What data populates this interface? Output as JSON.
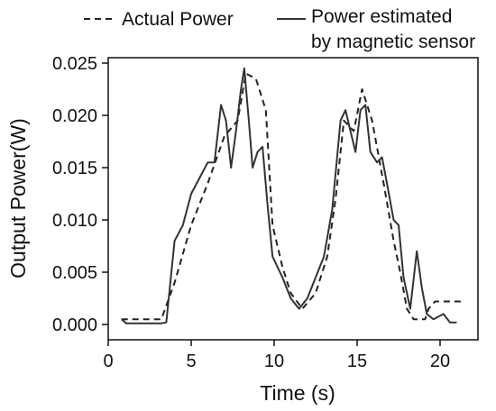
{
  "chart_data": {
    "type": "line",
    "title": "",
    "xlabel": "Time  (s)",
    "ylabel": "Output  Power(W)",
    "xlim": [
      0,
      22
    ],
    "ylim": [
      -0.001,
      0.026
    ],
    "x_ticks": [
      0,
      5,
      10,
      15,
      20
    ],
    "x_tick_labels": [
      "0",
      "5",
      "10",
      "15",
      "20"
    ],
    "y_ticks": [
      0.0,
      0.005,
      0.01,
      0.015,
      0.02,
      0.025
    ],
    "y_tick_labels": [
      "0.000",
      "0.005",
      "0.010",
      "0.015",
      "0.020",
      "0.025"
    ],
    "grid": false,
    "legend_position": "top",
    "series": [
      {
        "name": "Actual Power",
        "style": "dashed",
        "color": "#222222",
        "points": [
          [
            0.8,
            0.0005
          ],
          [
            3.2,
            0.0005
          ],
          [
            4.0,
            0.004
          ],
          [
            5.0,
            0.0095
          ],
          [
            6.0,
            0.0135
          ],
          [
            7.0,
            0.018
          ],
          [
            7.8,
            0.0195
          ],
          [
            8.3,
            0.024
          ],
          [
            8.9,
            0.0235
          ],
          [
            9.5,
            0.0205
          ],
          [
            9.9,
            0.0095
          ],
          [
            10.5,
            0.0055
          ],
          [
            11.0,
            0.003
          ],
          [
            11.7,
            0.0015
          ],
          [
            12.5,
            0.003
          ],
          [
            13.2,
            0.0065
          ],
          [
            13.7,
            0.012
          ],
          [
            14.2,
            0.0195
          ],
          [
            14.8,
            0.0185
          ],
          [
            15.3,
            0.0225
          ],
          [
            15.9,
            0.0195
          ],
          [
            16.6,
            0.0135
          ],
          [
            17.2,
            0.008
          ],
          [
            17.6,
            0.005
          ],
          [
            18.0,
            0.0015
          ],
          [
            18.4,
            0.0005
          ],
          [
            19.1,
            0.0005
          ],
          [
            19.3,
            0.0015
          ],
          [
            19.7,
            0.0022
          ],
          [
            21.3,
            0.0022
          ]
        ]
      },
      {
        "name": "Power estimated by magnetic sensor",
        "style": "solid",
        "color": "#333333",
        "points": [
          [
            0.8,
            0.0005
          ],
          [
            1.1,
            0.0001
          ],
          [
            3.2,
            0.0001
          ],
          [
            3.5,
            0.0002
          ],
          [
            4.0,
            0.008
          ],
          [
            4.5,
            0.0095
          ],
          [
            5.0,
            0.0125
          ],
          [
            5.5,
            0.014
          ],
          [
            6.0,
            0.0155
          ],
          [
            6.4,
            0.0155
          ],
          [
            6.8,
            0.021
          ],
          [
            7.1,
            0.0195
          ],
          [
            7.4,
            0.015
          ],
          [
            7.7,
            0.0185
          ],
          [
            8.0,
            0.0225
          ],
          [
            8.2,
            0.0245
          ],
          [
            8.5,
            0.019
          ],
          [
            8.7,
            0.015
          ],
          [
            9.0,
            0.0165
          ],
          [
            9.3,
            0.017
          ],
          [
            9.6,
            0.0115
          ],
          [
            9.9,
            0.0065
          ],
          [
            10.5,
            0.0045
          ],
          [
            11.0,
            0.0025
          ],
          [
            11.5,
            0.0015
          ],
          [
            12.0,
            0.0025
          ],
          [
            12.5,
            0.0045
          ],
          [
            13.0,
            0.0065
          ],
          [
            13.5,
            0.011
          ],
          [
            14.0,
            0.0195
          ],
          [
            14.3,
            0.0205
          ],
          [
            14.6,
            0.0185
          ],
          [
            14.9,
            0.0165
          ],
          [
            15.2,
            0.0205
          ],
          [
            15.5,
            0.021
          ],
          [
            15.8,
            0.0165
          ],
          [
            16.2,
            0.0155
          ],
          [
            16.5,
            0.016
          ],
          [
            16.8,
            0.0135
          ],
          [
            17.2,
            0.01
          ],
          [
            17.5,
            0.0095
          ],
          [
            17.8,
            0.0045
          ],
          [
            18.2,
            0.0015
          ],
          [
            18.6,
            0.007
          ],
          [
            18.9,
            0.0035
          ],
          [
            19.2,
            0.001
          ],
          [
            19.6,
            0.0005
          ],
          [
            20.2,
            0.001
          ],
          [
            20.6,
            0.0002
          ],
          [
            21.0,
            0.0002
          ]
        ]
      }
    ]
  }
}
